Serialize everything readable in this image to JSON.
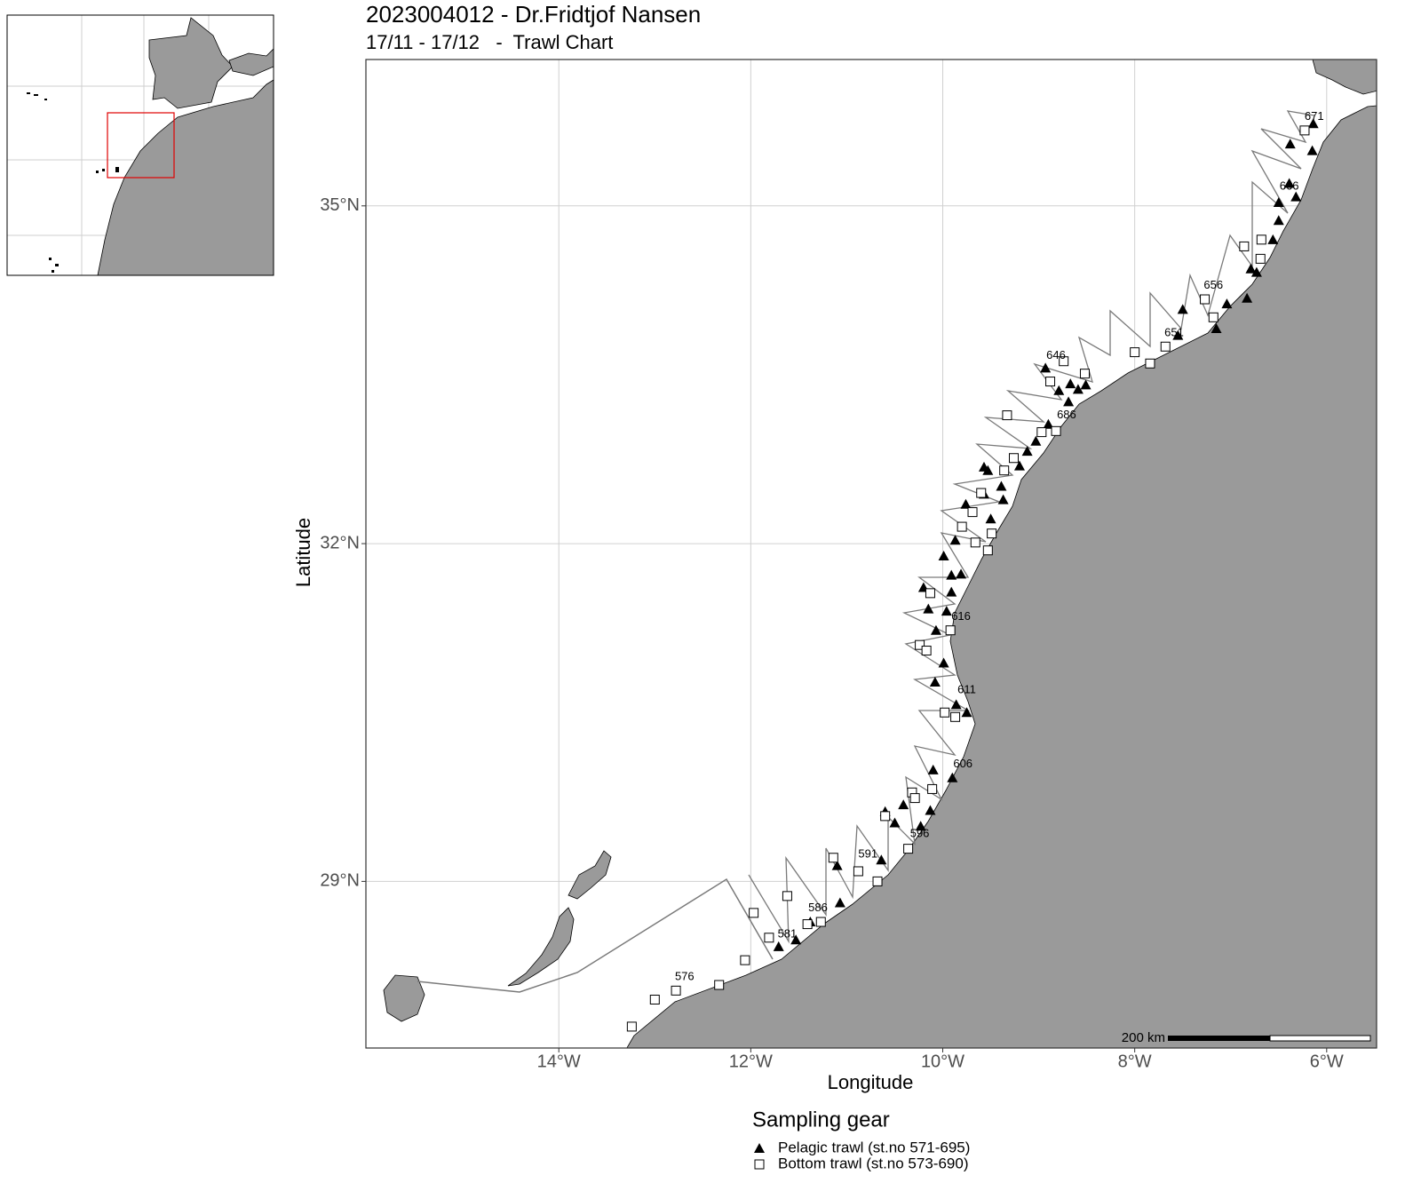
{
  "chart_data": {
    "type": "scatter",
    "title": "2023004012 - Dr.Fridtjof Nansen",
    "subtitle": "17/11 - 17/12   -  Trawl Chart",
    "x_label": "Longitude",
    "y_label": "Latitude",
    "xlim": [
      -16.01,
      -5.48
    ],
    "ylim": [
      27.52,
      36.3
    ],
    "xticks": [
      {
        "value": -14,
        "label": "14°W"
      },
      {
        "value": -12,
        "label": "12°W"
      },
      {
        "value": -10,
        "label": "10°W"
      },
      {
        "value": -8,
        "label": "8°W"
      },
      {
        "value": -6,
        "label": "6°W"
      }
    ],
    "yticks": [
      {
        "value": 29,
        "label": "29°N"
      },
      {
        "value": 32,
        "label": "32°N"
      },
      {
        "value": 35,
        "label": "35°N"
      }
    ],
    "grid": true,
    "legend_title": "Sampling gear",
    "scale_bar": "200 km",
    "series": [
      {
        "name": "Pelagic trawl (st.no 571-695)",
        "marker": "triangle",
        "color": "#000000",
        "x": [
          -6.14,
          -6.15,
          -6.38,
          -6.39,
          -6.32,
          -6.5,
          -6.5,
          -6.56,
          -6.79,
          -6.73,
          -6.83,
          -7.04,
          -7.15,
          -7.5,
          -7.55,
          -8.93,
          -8.79,
          -8.67,
          -8.59,
          -8.51,
          -8.69,
          -8.9,
          -9.03,
          -9.12,
          -9.2,
          -9.57,
          -9.53,
          -9.39,
          -9.37,
          -9.57,
          -9.76,
          -9.5,
          -9.87,
          -9.99,
          -9.91,
          -9.81,
          -10.2,
          -9.91,
          -10.15,
          -9.96,
          -10.07,
          -9.99,
          -10.08,
          -9.86,
          -9.75,
          -10.1,
          -9.9,
          -10.13,
          -10.41,
          -10.6,
          -10.5,
          -10.23,
          -10.64,
          -11.1,
          -11.07,
          -11.53,
          -11.71,
          -11.38
        ],
        "values": [
          35.73,
          35.49,
          35.55,
          35.2,
          35.08,
          35.03,
          34.87,
          34.7,
          34.44,
          34.41,
          34.18,
          34.13,
          33.91,
          34.08,
          33.85,
          33.56,
          33.36,
          33.42,
          33.37,
          33.41,
          33.26,
          33.06,
          32.91,
          32.82,
          32.69,
          32.68,
          32.65,
          32.51,
          32.39,
          32.44,
          32.35,
          32.22,
          32.03,
          31.89,
          31.72,
          31.73,
          31.61,
          31.57,
          31.42,
          31.4,
          31.23,
          30.94,
          30.77,
          30.57,
          30.5,
          29.99,
          29.92,
          29.63,
          29.68,
          29.62,
          29.52,
          29.49,
          29.19,
          29.14,
          28.81,
          28.48,
          28.42,
          28.64
        ]
      },
      {
        "name": "Bottom trawl (st.no 573-690)",
        "marker": "square",
        "color": "#000000",
        "x": [
          -6.23,
          -6.68,
          -6.86,
          -6.69,
          -7.18,
          -7.27,
          -7.68,
          -7.84,
          -8.0,
          -8.74,
          -8.52,
          -8.88,
          -9.33,
          -8.82,
          -8.97,
          -9.26,
          -9.36,
          -9.6,
          -9.69,
          -9.8,
          -9.49,
          -9.66,
          -9.53,
          -10.13,
          -9.92,
          -10.24,
          -10.17,
          -9.98,
          -9.87,
          -10.11,
          -10.32,
          -10.29,
          -10.6,
          -10.36,
          -10.68,
          -10.88,
          -11.14,
          -11.27,
          -11.41,
          -11.62,
          -11.97,
          -11.81,
          -12.06,
          -12.33,
          -12.78,
          -13.0,
          -13.24
        ],
        "values": [
          35.67,
          34.7,
          34.64,
          34.53,
          34.01,
          34.17,
          33.75,
          33.6,
          33.7,
          33.62,
          33.51,
          33.44,
          33.14,
          33.0,
          32.99,
          32.76,
          32.65,
          32.45,
          32.28,
          32.15,
          32.09,
          32.01,
          31.94,
          31.56,
          31.23,
          31.1,
          31.05,
          30.5,
          30.46,
          29.82,
          29.79,
          29.74,
          29.58,
          29.29,
          29.0,
          29.09,
          29.21,
          28.64,
          28.62,
          28.87,
          28.72,
          28.5,
          28.3,
          28.08,
          28.03,
          27.95,
          27.71
        ]
      }
    ],
    "station_labels": [
      {
        "text": "671",
        "x": -6.13,
        "y": 35.79
      },
      {
        "text": "666",
        "x": -6.39,
        "y": 35.17
      },
      {
        "text": "656",
        "x": -7.18,
        "y": 34.29
      },
      {
        "text": "651",
        "x": -7.59,
        "y": 33.87
      },
      {
        "text": "646",
        "x": -8.82,
        "y": 33.67
      },
      {
        "text": "686",
        "x": -8.71,
        "y": 33.14
      },
      {
        "text": "616",
        "x": -9.81,
        "y": 31.35
      },
      {
        "text": "611",
        "x": -9.75,
        "y": 30.7
      },
      {
        "text": "606",
        "x": -9.79,
        "y": 30.04
      },
      {
        "text": "596",
        "x": -10.24,
        "y": 29.42
      },
      {
        "text": "591",
        "x": -10.78,
        "y": 29.24
      },
      {
        "text": "586",
        "x": -11.3,
        "y": 28.76
      },
      {
        "text": "581",
        "x": -11.62,
        "y": 28.53
      },
      {
        "text": "576",
        "x": -12.69,
        "y": 28.15
      }
    ]
  }
}
